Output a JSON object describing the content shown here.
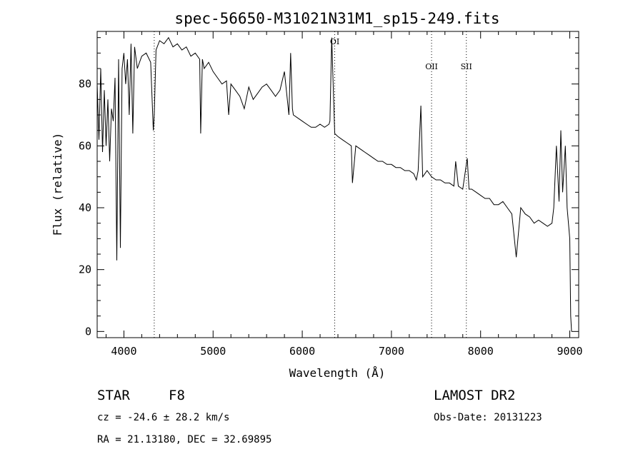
{
  "chart_data": {
    "type": "line",
    "title": "spec-56650-M31021N31M1_sp15-249.fits",
    "xlabel": "Wavelength (Å)",
    "ylabel": "Flux (relative)",
    "xlim": [
      3700,
      9100
    ],
    "ylim": [
      -2,
      97
    ],
    "x_ticks": [
      4000,
      5000,
      6000,
      7000,
      8000,
      9000
    ],
    "y_ticks": [
      0,
      20,
      40,
      60,
      80
    ],
    "x_tick_labels": [
      "4000",
      "5000",
      "6000",
      "7000",
      "8000",
      "9000"
    ],
    "y_tick_labels": [
      "0",
      "20",
      "40",
      "60",
      "80"
    ],
    "grid": false,
    "lines": [
      {
        "label": "",
        "x": 4340
      },
      {
        "label": "OI",
        "x": 6364
      },
      {
        "label": "OII",
        "x": 7450
      },
      {
        "label": "SII",
        "x": 7840
      }
    ],
    "series": [
      {
        "name": "",
        "x": [
          3700,
          3720,
          3740,
          3760,
          3780,
          3800,
          3820,
          3840,
          3860,
          3880,
          3900,
          3920,
          3940,
          3960,
          3980,
          4000,
          4020,
          4040,
          4060,
          4080,
          4100,
          4120,
          4150,
          4200,
          4250,
          4300,
          4330,
          4340,
          4360,
          4400,
          4450,
          4500,
          4550,
          4600,
          4650,
          4700,
          4750,
          4800,
          4850,
          4861,
          4880,
          4900,
          4950,
          5000,
          5050,
          5100,
          5150,
          5175,
          5200,
          5250,
          5300,
          5350,
          5400,
          5450,
          5500,
          5550,
          5600,
          5650,
          5700,
          5750,
          5800,
          5850,
          5870,
          5890,
          5900,
          5950,
          6000,
          6050,
          6100,
          6150,
          6200,
          6250,
          6300,
          6310,
          6330,
          6364,
          6400,
          6450,
          6500,
          6550,
          6563,
          6600,
          6650,
          6700,
          6750,
          6800,
          6850,
          6900,
          6950,
          7000,
          7050,
          7100,
          7150,
          7200,
          7250,
          7280,
          7300,
          7330,
          7350,
          7400,
          7450,
          7500,
          7550,
          7600,
          7650,
          7700,
          7720,
          7750,
          7800,
          7850,
          7870,
          7900,
          7950,
          8000,
          8050,
          8100,
          8150,
          8200,
          8250,
          8300,
          8350,
          8400,
          8450,
          8500,
          8550,
          8600,
          8650,
          8700,
          8750,
          8800,
          8820,
          8850,
          8880,
          8900,
          8920,
          8950,
          8970,
          9000,
          9010,
          9020
        ],
        "y": [
          80,
          62,
          85,
          58,
          78,
          60,
          75,
          55,
          72,
          68,
          82,
          23,
          88,
          27,
          85,
          90,
          80,
          88,
          70,
          93,
          64,
          92,
          85,
          89,
          90,
          87,
          65,
          70,
          91,
          94,
          93,
          95,
          92,
          93,
          91,
          92,
          89,
          90,
          88,
          64,
          88,
          85,
          87,
          84,
          82,
          80,
          81,
          70,
          80,
          78,
          76,
          72,
          79,
          75,
          77,
          79,
          80,
          78,
          76,
          78,
          84,
          70,
          90,
          72,
          70,
          69,
          68,
          67,
          66,
          66,
          67,
          66,
          67,
          68,
          95,
          64,
          63,
          62,
          61,
          60,
          48,
          60,
          59,
          58,
          57,
          56,
          55,
          55,
          54,
          54,
          53,
          53,
          52,
          52,
          51,
          49,
          52,
          73,
          50,
          52,
          50,
          49,
          49,
          48,
          48,
          47,
          55,
          47,
          46,
          56,
          46,
          46,
          45,
          44,
          43,
          43,
          41,
          41,
          42,
          40,
          38,
          24,
          40,
          38,
          37,
          35,
          36,
          35,
          34,
          35,
          40,
          60,
          42,
          65,
          45,
          60,
          40,
          30,
          5,
          0
        ]
      }
    ],
    "footer": {
      "object_class": "STAR",
      "subclass": "F8",
      "cz": "cz = -24.6 ± 28.2 km/s",
      "radec": "RA =  21.13180, DEC =  32.69895",
      "survey": "LAMOST DR2",
      "obs_date": "Obs-Date: 20131223"
    }
  }
}
